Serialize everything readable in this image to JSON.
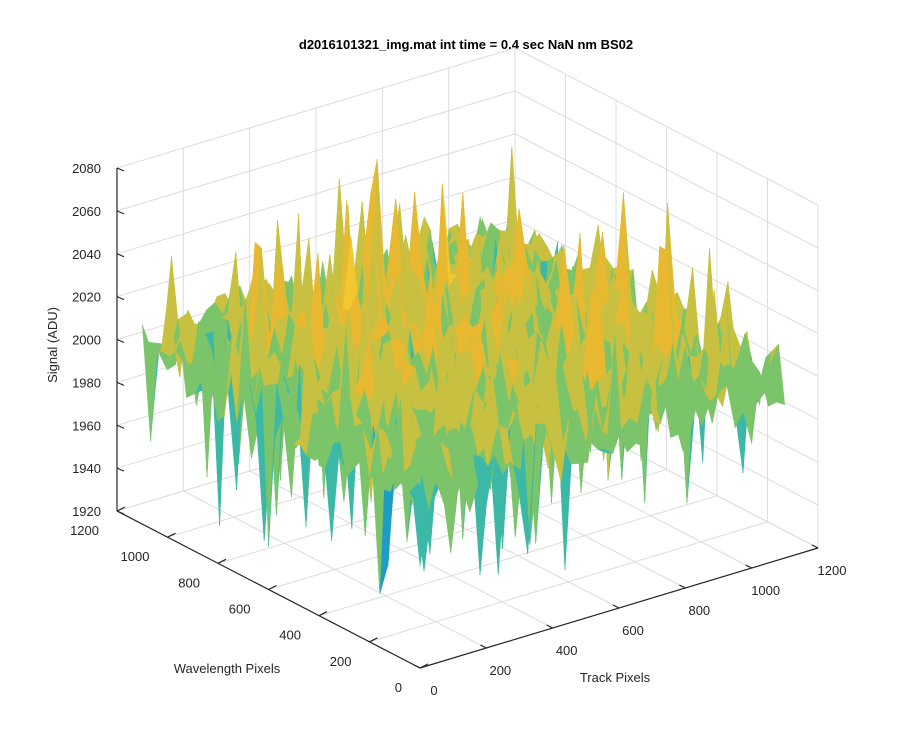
{
  "chart_data": {
    "type": "surface",
    "title": "d2016101321_img.mat int time = 0.4 sec  NaN nm BS02",
    "xlabel": "Track Pixels",
    "ylabel": "Wavelength Pixels",
    "zlabel": "Signal (ADU)",
    "xlim": [
      0,
      1200
    ],
    "ylim": [
      0,
      1200
    ],
    "zlim": [
      1920,
      2080
    ],
    "xticks": [
      0,
      200,
      400,
      600,
      800,
      1000,
      1200
    ],
    "yticks": [
      0,
      200,
      400,
      600,
      800,
      1000,
      1200
    ],
    "zticks": [
      1920,
      1940,
      1960,
      1980,
      2000,
      2020,
      2040,
      2060,
      2080
    ],
    "xtick_labels": [
      "0",
      "200",
      "400",
      "600",
      "800",
      "1000",
      "1200"
    ],
    "ytick_labels": [
      "0",
      "200",
      "400",
      "600",
      "800",
      "1000",
      "1200"
    ],
    "ztick_labels": [
      "1920",
      "1940",
      "1960",
      "1980",
      "2000",
      "2020",
      "2040",
      "2060",
      "2080"
    ],
    "data_extent": {
      "x": [
        0,
        1100
      ],
      "y": [
        0,
        1100
      ]
    },
    "approx_mean_signal": 2010,
    "approx_signal_range": [
      1925,
      2080
    ],
    "colormap": [
      "#0072BD",
      "#1C9CC7",
      "#3BB8A6",
      "#7CC46A",
      "#C8C040",
      "#E8B830",
      "#F2C830"
    ],
    "grid": true,
    "legend": "none"
  }
}
